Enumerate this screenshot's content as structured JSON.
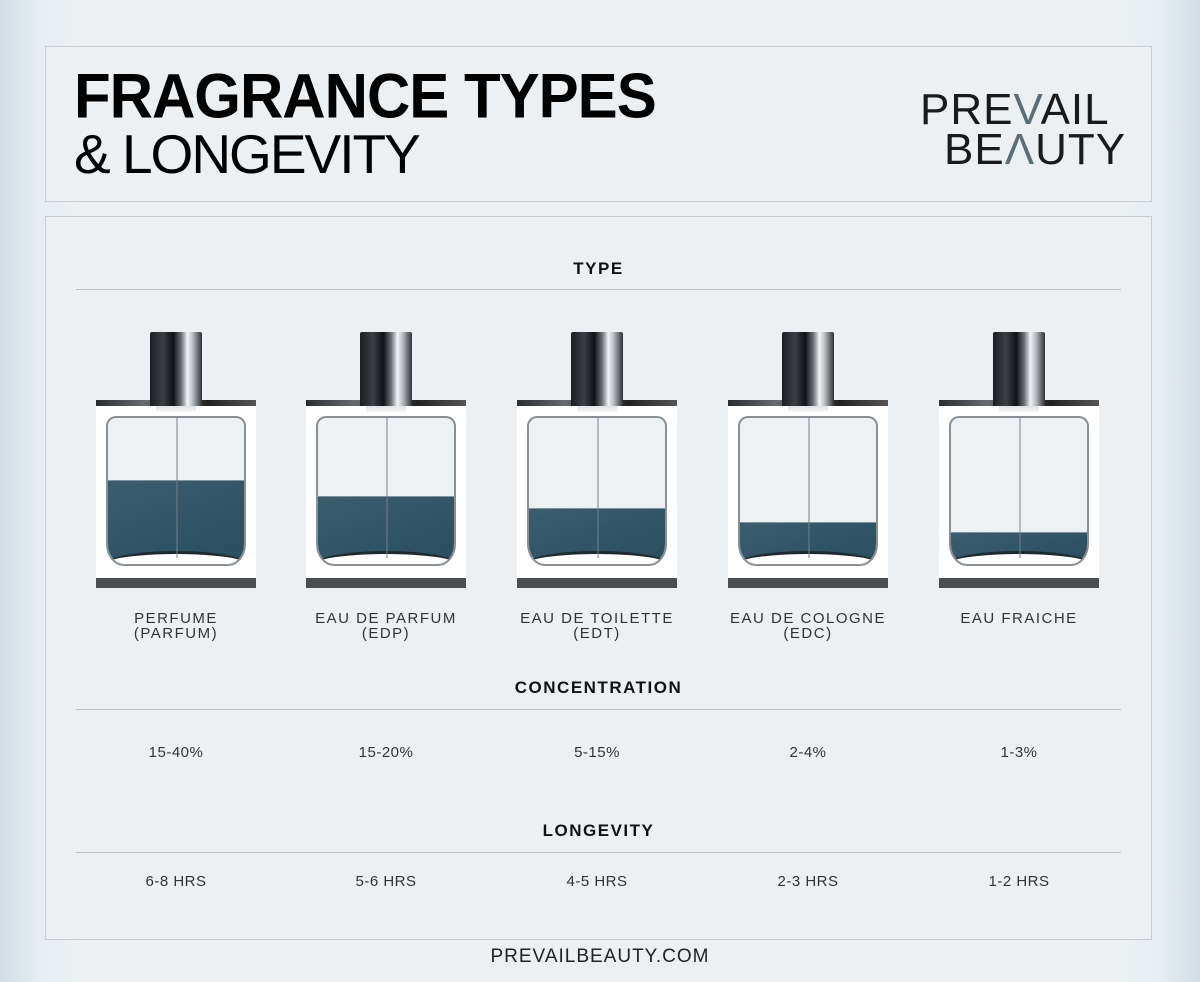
{
  "header": {
    "title_line1": "FRAGRANCE TYPES",
    "title_line2": "& LONGEVITY",
    "logo": {
      "line1_pre": "PRE",
      "line1_accent": "V",
      "line1_post": "AIL",
      "line2_pre": "BE",
      "line2_accent": "Λ",
      "line2_post": "UTY"
    }
  },
  "sections": {
    "type_heading": "TYPE",
    "concentration_heading": "CONCENTRATION",
    "longevity_heading": "LONGEVITY"
  },
  "colors": {
    "background": "#ecf0f3",
    "liquid": "#2f5466",
    "text": "#222222",
    "rule": "#bfc4c8"
  },
  "fragrances": [
    {
      "name": "PERFUME",
      "abbr": "(PARFUM)",
      "concentration": "15-40%",
      "longevity": "6-8 HRS",
      "fill_pct": 50
    },
    {
      "name": "EAU DE PARFUM",
      "abbr": "(EDP)",
      "concentration": "15-20%",
      "longevity": "5-6 HRS",
      "fill_pct": 39
    },
    {
      "name": "EAU DE TOILETTE",
      "abbr": "(EDT)",
      "concentration": "5-15%",
      "longevity": "4-5 HRS",
      "fill_pct": 31
    },
    {
      "name": "EAU DE COLOGNE",
      "abbr": "(EDC)",
      "concentration": "2-4%",
      "longevity": "2-3 HRS",
      "fill_pct": 22
    },
    {
      "name": "EAU FRAICHE",
      "abbr": "",
      "concentration": "1-3%",
      "longevity": "1-2 HRS",
      "fill_pct": 15
    }
  ],
  "footer": {
    "url": "PREVAILBEAUTY.COM"
  }
}
